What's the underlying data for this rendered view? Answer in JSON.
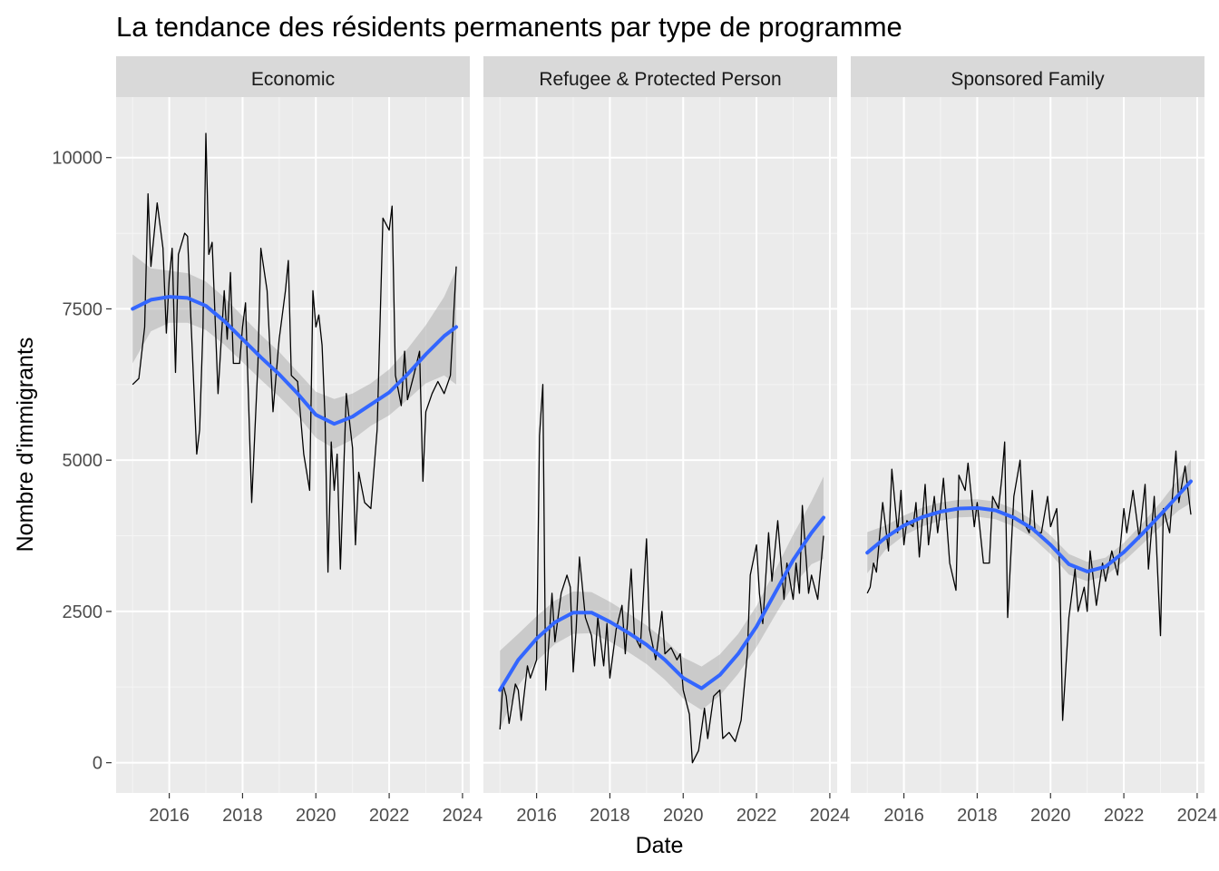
{
  "chart_data": {
    "type": "line",
    "title": "La tendance des résidents permanents par type de programme",
    "xlabel": "Date",
    "ylabel": "Nombre d'immigrants",
    "xlim": [
      2014.55,
      2024.2
    ],
    "ylim": [
      -500,
      11000
    ],
    "x_ticks": [
      2016,
      2018,
      2020,
      2022,
      2024
    ],
    "y_ticks": [
      0,
      2500,
      5000,
      7500,
      10000
    ],
    "grid": true,
    "smoother": "loess with grey confidence band",
    "panels": [
      {
        "name": "Economic",
        "raw": [
          [
            2015.0,
            6250
          ],
          [
            2015.17,
            6350
          ],
          [
            2015.33,
            7200
          ],
          [
            2015.42,
            9400
          ],
          [
            2015.5,
            8200
          ],
          [
            2015.67,
            9250
          ],
          [
            2015.83,
            8500
          ],
          [
            2015.92,
            7100
          ],
          [
            2016.0,
            8000
          ],
          [
            2016.08,
            8500
          ],
          [
            2016.17,
            6450
          ],
          [
            2016.25,
            8400
          ],
          [
            2016.42,
            8750
          ],
          [
            2016.5,
            8700
          ],
          [
            2016.58,
            7500
          ],
          [
            2016.75,
            5100
          ],
          [
            2016.83,
            5500
          ],
          [
            2016.92,
            7200
          ],
          [
            2017.0,
            10400
          ],
          [
            2017.08,
            8400
          ],
          [
            2017.17,
            8600
          ],
          [
            2017.33,
            6100
          ],
          [
            2017.5,
            7800
          ],
          [
            2017.58,
            7000
          ],
          [
            2017.67,
            8100
          ],
          [
            2017.75,
            6600
          ],
          [
            2017.92,
            6600
          ],
          [
            2018.0,
            7200
          ],
          [
            2018.08,
            7600
          ],
          [
            2018.25,
            4300
          ],
          [
            2018.42,
            6600
          ],
          [
            2018.5,
            8500
          ],
          [
            2018.67,
            7800
          ],
          [
            2018.83,
            5800
          ],
          [
            2019.0,
            7000
          ],
          [
            2019.17,
            7800
          ],
          [
            2019.25,
            8300
          ],
          [
            2019.33,
            6400
          ],
          [
            2019.5,
            6300
          ],
          [
            2019.67,
            5100
          ],
          [
            2019.83,
            4500
          ],
          [
            2019.92,
            7800
          ],
          [
            2020.0,
            7200
          ],
          [
            2020.08,
            7400
          ],
          [
            2020.17,
            6900
          ],
          [
            2020.25,
            5700
          ],
          [
            2020.33,
            3150
          ],
          [
            2020.42,
            5300
          ],
          [
            2020.5,
            4500
          ],
          [
            2020.58,
            5100
          ],
          [
            2020.67,
            3200
          ],
          [
            2020.83,
            6100
          ],
          [
            2021.0,
            5200
          ],
          [
            2021.08,
            3600
          ],
          [
            2021.17,
            4800
          ],
          [
            2021.33,
            4300
          ],
          [
            2021.5,
            4200
          ],
          [
            2021.67,
            5500
          ],
          [
            2021.83,
            9000
          ],
          [
            2022.0,
            8800
          ],
          [
            2022.08,
            9200
          ],
          [
            2022.17,
            6400
          ],
          [
            2022.33,
            5900
          ],
          [
            2022.42,
            6800
          ],
          [
            2022.5,
            6000
          ],
          [
            2022.67,
            6400
          ],
          [
            2022.83,
            6800
          ],
          [
            2022.92,
            4650
          ],
          [
            2023.0,
            5800
          ],
          [
            2023.17,
            6100
          ],
          [
            2023.33,
            6300
          ],
          [
            2023.5,
            6100
          ],
          [
            2023.67,
            6400
          ],
          [
            2023.83,
            8200
          ]
        ],
        "smooth": [
          [
            2015.0,
            7500
          ],
          [
            2015.5,
            7650
          ],
          [
            2016.0,
            7700
          ],
          [
            2016.5,
            7680
          ],
          [
            2017.0,
            7550
          ],
          [
            2017.5,
            7300
          ],
          [
            2018.0,
            7000
          ],
          [
            2018.5,
            6700
          ],
          [
            2019.0,
            6420
          ],
          [
            2019.5,
            6100
          ],
          [
            2020.0,
            5750
          ],
          [
            2020.5,
            5600
          ],
          [
            2021.0,
            5720
          ],
          [
            2021.5,
            5920
          ],
          [
            2022.0,
            6120
          ],
          [
            2022.5,
            6420
          ],
          [
            2023.0,
            6750
          ],
          [
            2023.5,
            7050
          ],
          [
            2023.83,
            7200
          ]
        ],
        "se": [
          900,
          520,
          430,
          410,
          400,
          390,
          380,
          370,
          370,
          360,
          380,
          410,
          380,
          350,
          380,
          420,
          480,
          650,
          950
        ]
      },
      {
        "name": "Refugee & Protected Person",
        "raw": [
          [
            2015.0,
            550
          ],
          [
            2015.08,
            1300
          ],
          [
            2015.17,
            1100
          ],
          [
            2015.25,
            650
          ],
          [
            2015.42,
            1300
          ],
          [
            2015.5,
            1200
          ],
          [
            2015.58,
            700
          ],
          [
            2015.75,
            1600
          ],
          [
            2015.83,
            1400
          ],
          [
            2016.0,
            1700
          ],
          [
            2016.08,
            5400
          ],
          [
            2016.17,
            6250
          ],
          [
            2016.25,
            1200
          ],
          [
            2016.42,
            2800
          ],
          [
            2016.5,
            2000
          ],
          [
            2016.67,
            2800
          ],
          [
            2016.83,
            3100
          ],
          [
            2016.92,
            2900
          ],
          [
            2017.0,
            1500
          ],
          [
            2017.08,
            2200
          ],
          [
            2017.17,
            3400
          ],
          [
            2017.33,
            2400
          ],
          [
            2017.5,
            2100
          ],
          [
            2017.58,
            1600
          ],
          [
            2017.67,
            2400
          ],
          [
            2017.83,
            1600
          ],
          [
            2017.92,
            2300
          ],
          [
            2018.0,
            1400
          ],
          [
            2018.17,
            2200
          ],
          [
            2018.33,
            2600
          ],
          [
            2018.42,
            1800
          ],
          [
            2018.58,
            3200
          ],
          [
            2018.67,
            2100
          ],
          [
            2018.83,
            1900
          ],
          [
            2019.0,
            3700
          ],
          [
            2019.08,
            2200
          ],
          [
            2019.25,
            1700
          ],
          [
            2019.42,
            2500
          ],
          [
            2019.5,
            1800
          ],
          [
            2019.67,
            1900
          ],
          [
            2019.83,
            1700
          ],
          [
            2019.92,
            1800
          ],
          [
            2020.0,
            1200
          ],
          [
            2020.17,
            800
          ],
          [
            2020.25,
            0
          ],
          [
            2020.42,
            200
          ],
          [
            2020.58,
            900
          ],
          [
            2020.67,
            400
          ],
          [
            2020.83,
            1100
          ],
          [
            2021.0,
            1200
          ],
          [
            2021.08,
            400
          ],
          [
            2021.25,
            500
          ],
          [
            2021.42,
            350
          ],
          [
            2021.58,
            700
          ],
          [
            2021.75,
            1800
          ],
          [
            2021.83,
            3100
          ],
          [
            2022.0,
            3600
          ],
          [
            2022.08,
            2800
          ],
          [
            2022.17,
            2300
          ],
          [
            2022.33,
            3800
          ],
          [
            2022.42,
            3000
          ],
          [
            2022.58,
            4000
          ],
          [
            2022.75,
            2700
          ],
          [
            2022.83,
            3300
          ],
          [
            2023.0,
            2700
          ],
          [
            2023.08,
            3300
          ],
          [
            2023.17,
            2800
          ],
          [
            2023.25,
            4250
          ],
          [
            2023.42,
            2800
          ],
          [
            2023.5,
            3100
          ],
          [
            2023.67,
            2700
          ],
          [
            2023.83,
            3750
          ]
        ],
        "smooth": [
          [
            2015.0,
            1200
          ],
          [
            2015.5,
            1700
          ],
          [
            2016.0,
            2050
          ],
          [
            2016.5,
            2320
          ],
          [
            2017.0,
            2480
          ],
          [
            2017.5,
            2480
          ],
          [
            2018.0,
            2330
          ],
          [
            2018.5,
            2150
          ],
          [
            2019.0,
            1950
          ],
          [
            2019.5,
            1700
          ],
          [
            2020.0,
            1400
          ],
          [
            2020.5,
            1230
          ],
          [
            2021.0,
            1450
          ],
          [
            2021.5,
            1800
          ],
          [
            2022.0,
            2250
          ],
          [
            2022.5,
            2800
          ],
          [
            2023.0,
            3350
          ],
          [
            2023.5,
            3800
          ],
          [
            2023.83,
            4050
          ]
        ],
        "se": [
          650,
          430,
          370,
          360,
          350,
          340,
          330,
          320,
          320,
          330,
          340,
          360,
          340,
          330,
          340,
          370,
          420,
          520,
          680
        ]
      },
      {
        "name": "Sponsored Family",
        "raw": [
          [
            2015.0,
            2800
          ],
          [
            2015.08,
            2900
          ],
          [
            2015.17,
            3300
          ],
          [
            2015.25,
            3150
          ],
          [
            2015.42,
            4300
          ],
          [
            2015.58,
            3500
          ],
          [
            2015.67,
            4850
          ],
          [
            2015.83,
            3800
          ],
          [
            2015.92,
            4500
          ],
          [
            2016.0,
            3600
          ],
          [
            2016.08,
            4000
          ],
          [
            2016.25,
            3900
          ],
          [
            2016.33,
            4300
          ],
          [
            2016.42,
            3400
          ],
          [
            2016.58,
            4600
          ],
          [
            2016.67,
            3600
          ],
          [
            2016.83,
            4400
          ],
          [
            2016.92,
            3800
          ],
          [
            2017.0,
            4200
          ],
          [
            2017.08,
            4700
          ],
          [
            2017.25,
            3300
          ],
          [
            2017.42,
            2850
          ],
          [
            2017.5,
            4750
          ],
          [
            2017.67,
            4500
          ],
          [
            2017.75,
            4950
          ],
          [
            2017.92,
            3900
          ],
          [
            2018.0,
            4300
          ],
          [
            2018.17,
            3300
          ],
          [
            2018.33,
            3300
          ],
          [
            2018.42,
            4400
          ],
          [
            2018.58,
            4200
          ],
          [
            2018.67,
            4700
          ],
          [
            2018.75,
            5300
          ],
          [
            2018.83,
            2400
          ],
          [
            2019.0,
            4400
          ],
          [
            2019.17,
            5000
          ],
          [
            2019.25,
            4000
          ],
          [
            2019.42,
            3800
          ],
          [
            2019.5,
            4500
          ],
          [
            2019.58,
            3800
          ],
          [
            2019.75,
            3800
          ],
          [
            2019.92,
            4400
          ],
          [
            2020.0,
            3900
          ],
          [
            2020.17,
            4200
          ],
          [
            2020.25,
            3200
          ],
          [
            2020.33,
            700
          ],
          [
            2020.5,
            2400
          ],
          [
            2020.67,
            3200
          ],
          [
            2020.75,
            2500
          ],
          [
            2020.92,
            2900
          ],
          [
            2021.0,
            2500
          ],
          [
            2021.08,
            3500
          ],
          [
            2021.25,
            2600
          ],
          [
            2021.42,
            3300
          ],
          [
            2021.5,
            3000
          ],
          [
            2021.67,
            3500
          ],
          [
            2021.83,
            3100
          ],
          [
            2022.0,
            4200
          ],
          [
            2022.08,
            3800
          ],
          [
            2022.25,
            4500
          ],
          [
            2022.42,
            3700
          ],
          [
            2022.58,
            4600
          ],
          [
            2022.67,
            3200
          ],
          [
            2022.83,
            4400
          ],
          [
            2023.0,
            2100
          ],
          [
            2023.08,
            4200
          ],
          [
            2023.25,
            3800
          ],
          [
            2023.42,
            5150
          ],
          [
            2023.5,
            4300
          ],
          [
            2023.67,
            4900
          ],
          [
            2023.83,
            4100
          ]
        ],
        "smooth": [
          [
            2015.0,
            3470
          ],
          [
            2015.5,
            3720
          ],
          [
            2016.0,
            3920
          ],
          [
            2016.5,
            4060
          ],
          [
            2017.0,
            4150
          ],
          [
            2017.5,
            4200
          ],
          [
            2018.0,
            4210
          ],
          [
            2018.5,
            4170
          ],
          [
            2019.0,
            4050
          ],
          [
            2019.5,
            3870
          ],
          [
            2020.0,
            3600
          ],
          [
            2020.5,
            3280
          ],
          [
            2021.0,
            3160
          ],
          [
            2021.5,
            3240
          ],
          [
            2022.0,
            3480
          ],
          [
            2022.5,
            3780
          ],
          [
            2023.0,
            4100
          ],
          [
            2023.5,
            4430
          ],
          [
            2023.83,
            4650
          ]
        ],
        "se": [
          340,
          200,
          165,
          155,
          150,
          145,
          145,
          145,
          145,
          145,
          155,
          170,
          160,
          150,
          155,
          170,
          200,
          260,
          360
        ]
      }
    ]
  }
}
